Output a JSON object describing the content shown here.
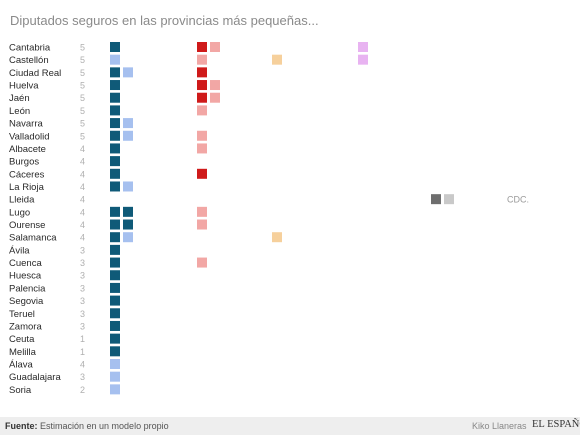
{
  "title": "Diputados seguros en las provincias más pequeñas...",
  "footer": {
    "source_label": "Fuente:",
    "source_text": "Estimación en un modelo propio",
    "author": "Kiko Llaneras",
    "brand": "EL ESPAÑOL"
  },
  "colors": {
    "navy": "#0f5a78",
    "lightblue": "#a6c0ef",
    "red": "#cf1a1a",
    "pink": "#f2a7a5",
    "orange": "#f6d09c",
    "violet": "#e8b3f1",
    "darkgray": "#6e6e6e",
    "lightgray": "#c9c9c9"
  },
  "chart_data": {
    "type": "table",
    "title": "Diputados seguros en las provincias más pequeñas...",
    "columns": [
      "navy",
      "lightblue",
      "red",
      "pink",
      "orange",
      "violet",
      "darkgray",
      "lightgray"
    ],
    "annotations": [
      {
        "text": "CDC.",
        "row": "Lleida"
      }
    ],
    "rows": [
      {
        "province": "Cantabria",
        "total": 5,
        "seats": {
          "navy": 1,
          "red": 1,
          "pink": 1,
          "violet": 1
        }
      },
      {
        "province": "Castellón",
        "total": 5,
        "seats": {
          "lightblue": 1,
          "pink": 1,
          "orange": 1,
          "violet": 1
        }
      },
      {
        "province": "Ciudad Real",
        "total": 5,
        "seats": {
          "navy": 1,
          "lightblue": 1,
          "red": 1
        }
      },
      {
        "province": "Huelva",
        "total": 5,
        "seats": {
          "navy": 1,
          "red": 1,
          "pink": 1
        }
      },
      {
        "province": "Jaén",
        "total": 5,
        "seats": {
          "navy": 1,
          "red": 1,
          "pink": 1
        }
      },
      {
        "province": "León",
        "total": 5,
        "seats": {
          "navy": 1,
          "pink": 1
        }
      },
      {
        "province": "Navarra",
        "total": 5,
        "seats": {
          "navy": 1,
          "lightblue": 1
        }
      },
      {
        "province": "Valladolid",
        "total": 5,
        "seats": {
          "navy": 1,
          "lightblue": 1,
          "pink": 1
        }
      },
      {
        "province": "Albacete",
        "total": 4,
        "seats": {
          "navy": 1,
          "pink": 1
        }
      },
      {
        "province": "Burgos",
        "total": 4,
        "seats": {
          "navy": 1
        }
      },
      {
        "province": "Cáceres",
        "total": 4,
        "seats": {
          "navy": 1,
          "red": 1
        }
      },
      {
        "province": "La Rioja",
        "total": 4,
        "seats": {
          "navy": 1,
          "lightblue": 1
        }
      },
      {
        "province": "Lleida",
        "total": 4,
        "seats": {
          "darkgray": 1,
          "lightgray": 1
        }
      },
      {
        "province": "Lugo",
        "total": 4,
        "seats": {
          "navy": 2,
          "pink": 1
        }
      },
      {
        "province": "Ourense",
        "total": 4,
        "seats": {
          "navy": 2,
          "pink": 1
        }
      },
      {
        "province": "Salamanca",
        "total": 4,
        "seats": {
          "navy": 1,
          "lightblue": 1,
          "orange": 1
        }
      },
      {
        "province": "Ávila",
        "total": 3,
        "seats": {
          "navy": 1
        }
      },
      {
        "province": "Cuenca",
        "total": 3,
        "seats": {
          "navy": 1,
          "pink": 1
        }
      },
      {
        "province": "Huesca",
        "total": 3,
        "seats": {
          "navy": 1
        }
      },
      {
        "province": "Palencia",
        "total": 3,
        "seats": {
          "navy": 1
        }
      },
      {
        "province": "Segovia",
        "total": 3,
        "seats": {
          "navy": 1
        }
      },
      {
        "province": "Teruel",
        "total": 3,
        "seats": {
          "navy": 1
        }
      },
      {
        "province": "Zamora",
        "total": 3,
        "seats": {
          "navy": 1
        }
      },
      {
        "province": "Ceuta",
        "total": 1,
        "seats": {
          "navy": 1
        }
      },
      {
        "province": "Melilla",
        "total": 1,
        "seats": {
          "navy": 1
        }
      },
      {
        "province": "Álava",
        "total": 4,
        "seats": {
          "lightblue": 1
        }
      },
      {
        "province": "Guadalajara",
        "total": 3,
        "seats": {
          "lightblue": 1
        }
      },
      {
        "province": "Soria",
        "total": 2,
        "seats": {
          "lightblue": 1
        }
      }
    ]
  }
}
